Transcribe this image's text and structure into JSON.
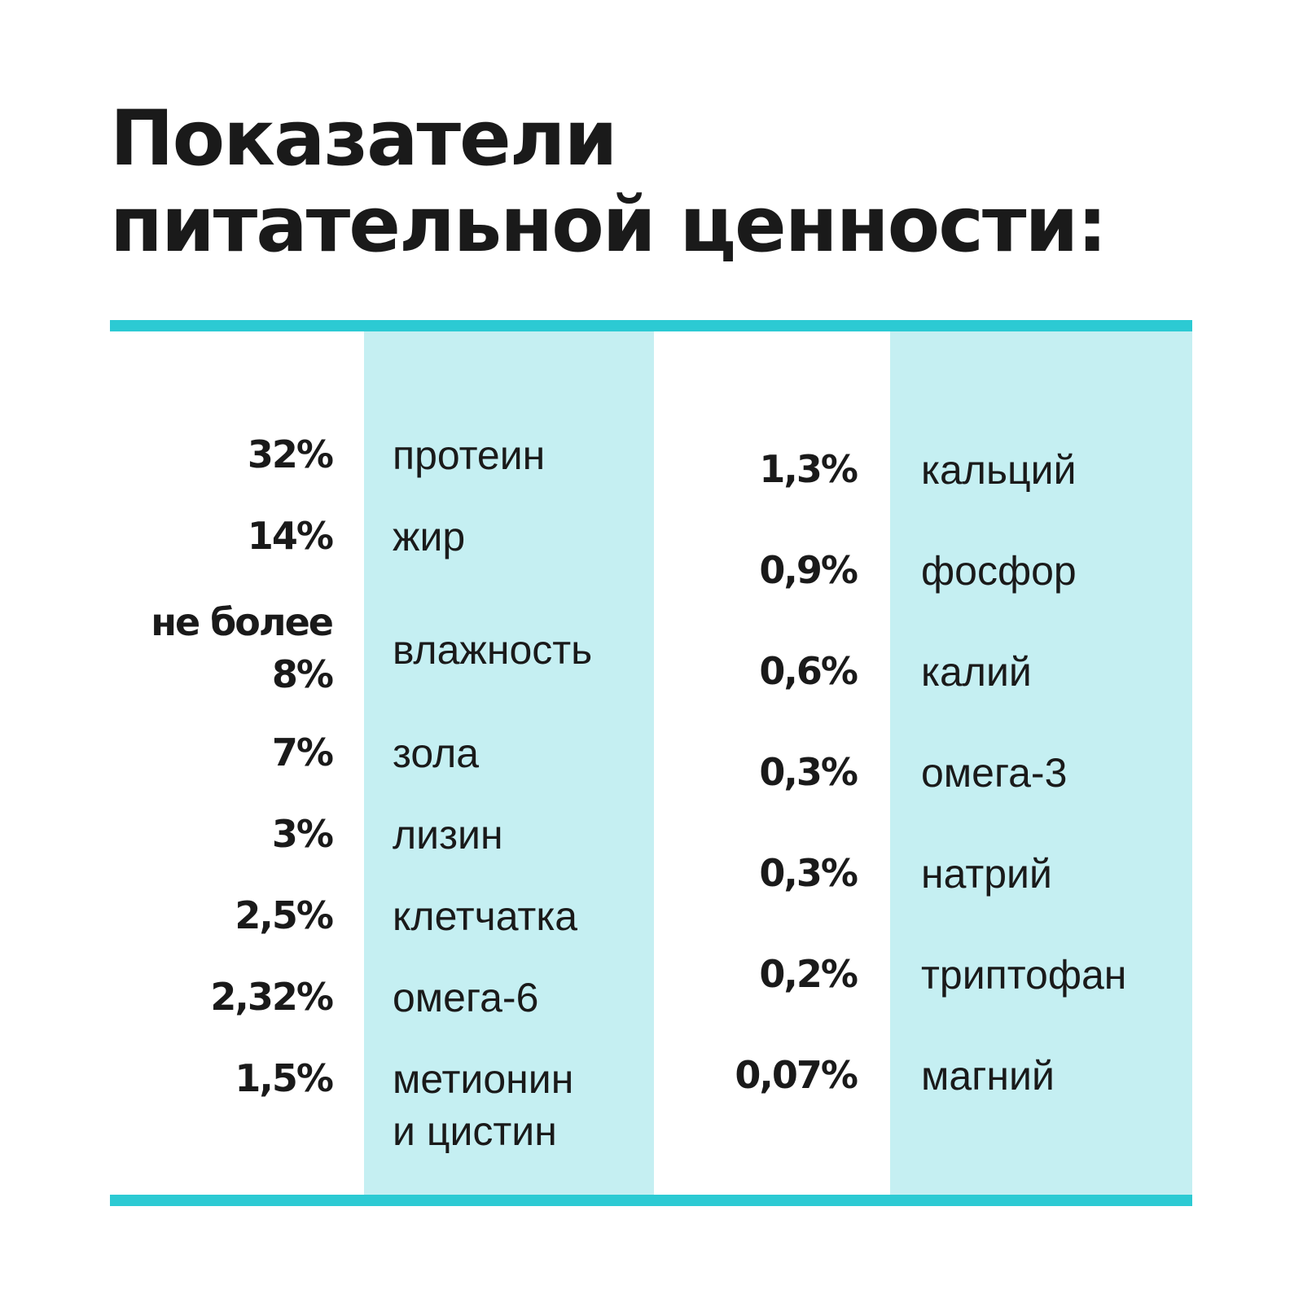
{
  "title": "Показатели питательной ценности:",
  "colors": {
    "accent": "#2ccad3",
    "band": "#c5eff2",
    "text": "#1a1a1a",
    "background": "#ffffff"
  },
  "left_column": [
    {
      "value": "32%",
      "name": "протеин"
    },
    {
      "value": "14%",
      "name": "жир"
    },
    {
      "value": "не более\n8%",
      "name": "влажность"
    },
    {
      "value": "7%",
      "name": "зола"
    },
    {
      "value": "3%",
      "name": "лизин"
    },
    {
      "value": "2,5%",
      "name": "клетчатка"
    },
    {
      "value": "2,32%",
      "name": "омега-6"
    },
    {
      "value": "1,5%",
      "name": "метионин\nи цистин"
    }
  ],
  "right_column": [
    {
      "value": "1,3%",
      "name": "кальций"
    },
    {
      "value": "0,9%",
      "name": "фосфор"
    },
    {
      "value": "0,6%",
      "name": "калий"
    },
    {
      "value": "0,3%",
      "name": "омега-3"
    },
    {
      "value": "0,3%",
      "name": "натрий"
    },
    {
      "value": "0,2%",
      "name": "триптофан"
    },
    {
      "value": "0,07%",
      "name": "магний"
    }
  ]
}
